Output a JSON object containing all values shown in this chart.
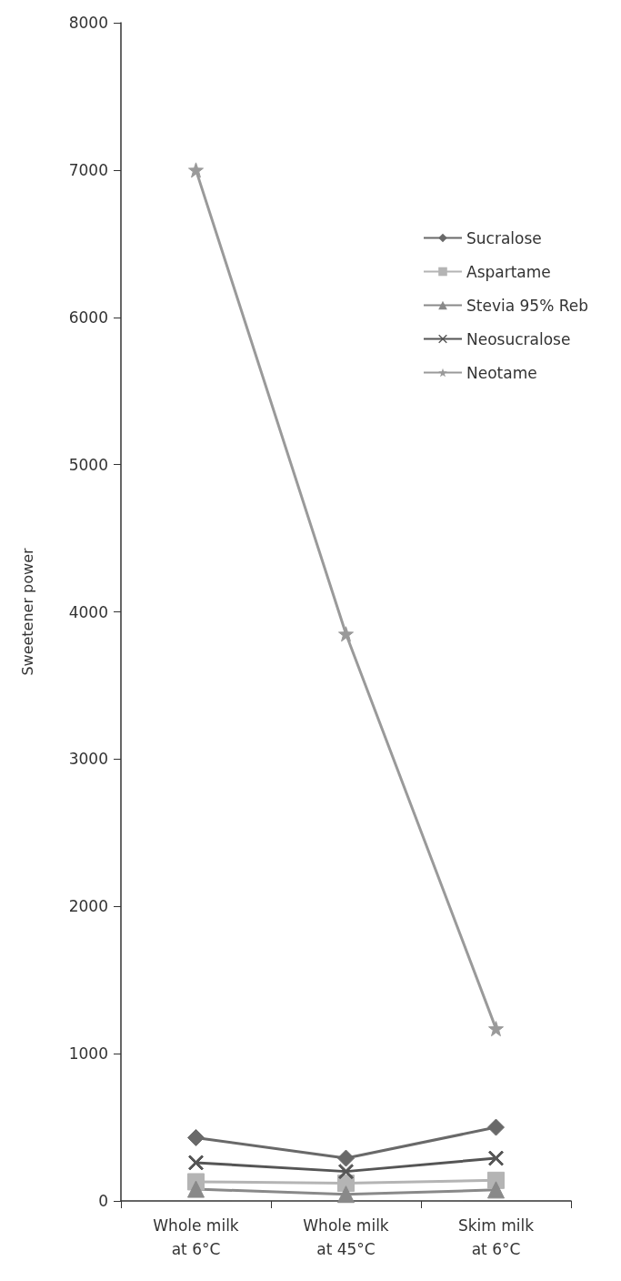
{
  "chart_data": {
    "type": "line",
    "ylabel": "Sweetener power",
    "categories": [
      "Whole milk\nat 6°C",
      "Whole milk\nat 45°C",
      "Skim milk\nat 6°C"
    ],
    "ylim": [
      0,
      8000
    ],
    "yticks": [
      0,
      1000,
      2000,
      3000,
      4000,
      5000,
      6000,
      7000,
      8000
    ],
    "grid": false,
    "legend": "top right",
    "series": [
      {
        "name": "Sucralose",
        "color": "#696969",
        "marker": "diamond",
        "values": [
          430,
          290,
          500
        ]
      },
      {
        "name": "Aspartame",
        "color": "#b4b4b4",
        "marker": "square",
        "values": [
          130,
          120,
          140
        ]
      },
      {
        "name": "Stevia 95% Reb",
        "color": "#898989",
        "marker": "triangle",
        "values": [
          80,
          45,
          75
        ]
      },
      {
        "name": "Neosucralose",
        "color": "#555555",
        "marker": "cross",
        "values": [
          260,
          200,
          290
        ]
      },
      {
        "name": "Neotame",
        "color": "#9a9a9a",
        "marker": "star",
        "values": [
          7000,
          3850,
          1170
        ]
      }
    ]
  }
}
